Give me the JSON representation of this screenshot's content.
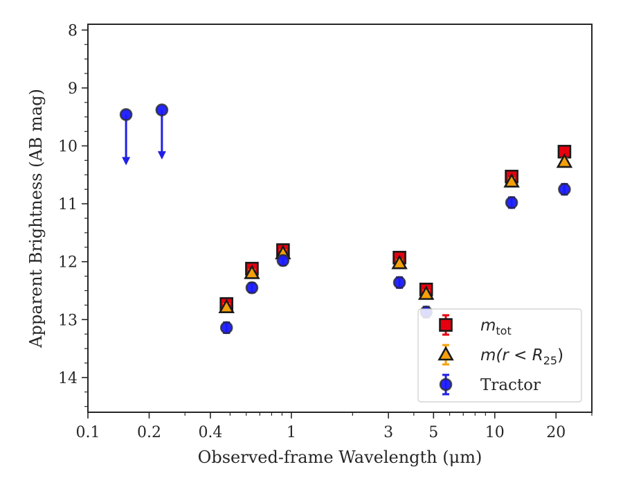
{
  "chart_data": {
    "type": "scatter",
    "title": "",
    "xlabel": "Observed-frame Wavelength (μm)",
    "ylabel": "Apparent Brightness (AB mag)",
    "x_scale": "log",
    "xlim": [
      0.1,
      30
    ],
    "ylim": [
      14.6,
      7.9
    ],
    "y_inverted": true,
    "grid": false,
    "x_ticks": [
      {
        "value": 0.1,
        "label": "0.1"
      },
      {
        "value": 0.2,
        "label": "0.2"
      },
      {
        "value": 0.4,
        "label": "0.4"
      },
      {
        "value": 1,
        "label": "1"
      },
      {
        "value": 3,
        "label": "3"
      },
      {
        "value": 5,
        "label": "5"
      },
      {
        "value": 10,
        "label": "10"
      },
      {
        "value": 20,
        "label": "20"
      }
    ],
    "y_ticks": [
      {
        "value": 8,
        "label": "8"
      },
      {
        "value": 9,
        "label": "9"
      },
      {
        "value": 10,
        "label": "10"
      },
      {
        "value": 11,
        "label": "11"
      },
      {
        "value": 12,
        "label": "12"
      },
      {
        "value": 13,
        "label": "13"
      },
      {
        "value": 14,
        "label": "14"
      }
    ],
    "legend_position": "lower-right",
    "series": [
      {
        "name": "m_tot",
        "legend_main": "m",
        "legend_sub": "tot",
        "marker": "square",
        "color": "#e6000f",
        "errcolor": "#e6000f",
        "points": [
          {
            "x": 0.48,
            "y": 12.73,
            "err": 0.07
          },
          {
            "x": 0.64,
            "y": 12.12,
            "err": 0.06
          },
          {
            "x": 0.91,
            "y": 11.8,
            "err": 0.07
          },
          {
            "x": 3.4,
            "y": 11.93,
            "err": 0.06
          },
          {
            "x": 4.6,
            "y": 12.48,
            "err": 0.06
          },
          {
            "x": 12.1,
            "y": 10.53,
            "err": 0.06
          },
          {
            "x": 22.0,
            "y": 10.1,
            "err": 0.06
          }
        ]
      },
      {
        "name": "m(r < R25)",
        "legend_main": "m(r < R",
        "legend_sub": "25",
        "legend_tail": ")",
        "marker": "triangle",
        "color": "#f5a00a",
        "errcolor": "#f5a00a",
        "points": [
          {
            "x": 0.48,
            "y": 12.79,
            "err": 0.06
          },
          {
            "x": 0.64,
            "y": 12.2,
            "err": 0.06
          },
          {
            "x": 0.91,
            "y": 11.86,
            "err": 0.06
          },
          {
            "x": 3.4,
            "y": 12.03,
            "err": 0.06
          },
          {
            "x": 4.6,
            "y": 12.56,
            "err": 0.06
          },
          {
            "x": 12.1,
            "y": 10.62,
            "err": 0.06
          },
          {
            "x": 22.0,
            "y": 10.28,
            "err": 0.06
          }
        ]
      },
      {
        "name": "Tractor",
        "legend_main": "Tractor",
        "marker": "circle",
        "color": "#1a1aff",
        "errcolor": "#1f1fe6",
        "points": [
          {
            "x": 0.154,
            "y": 9.46,
            "upper_limit": true,
            "arrow_to": 10.3
          },
          {
            "x": 0.231,
            "y": 9.38,
            "upper_limit": true,
            "arrow_to": 10.2
          },
          {
            "x": 0.48,
            "y": 13.14,
            "err": 0.09
          },
          {
            "x": 0.64,
            "y": 12.45,
            "err": 0.08
          },
          {
            "x": 0.91,
            "y": 11.98,
            "err": 0.08
          },
          {
            "x": 3.4,
            "y": 12.36,
            "err": 0.09
          },
          {
            "x": 4.6,
            "y": 12.87,
            "err": 0.09
          },
          {
            "x": 12.1,
            "y": 10.98,
            "err": 0.09
          },
          {
            "x": 22.0,
            "y": 10.75,
            "err": 0.09
          }
        ]
      }
    ]
  }
}
